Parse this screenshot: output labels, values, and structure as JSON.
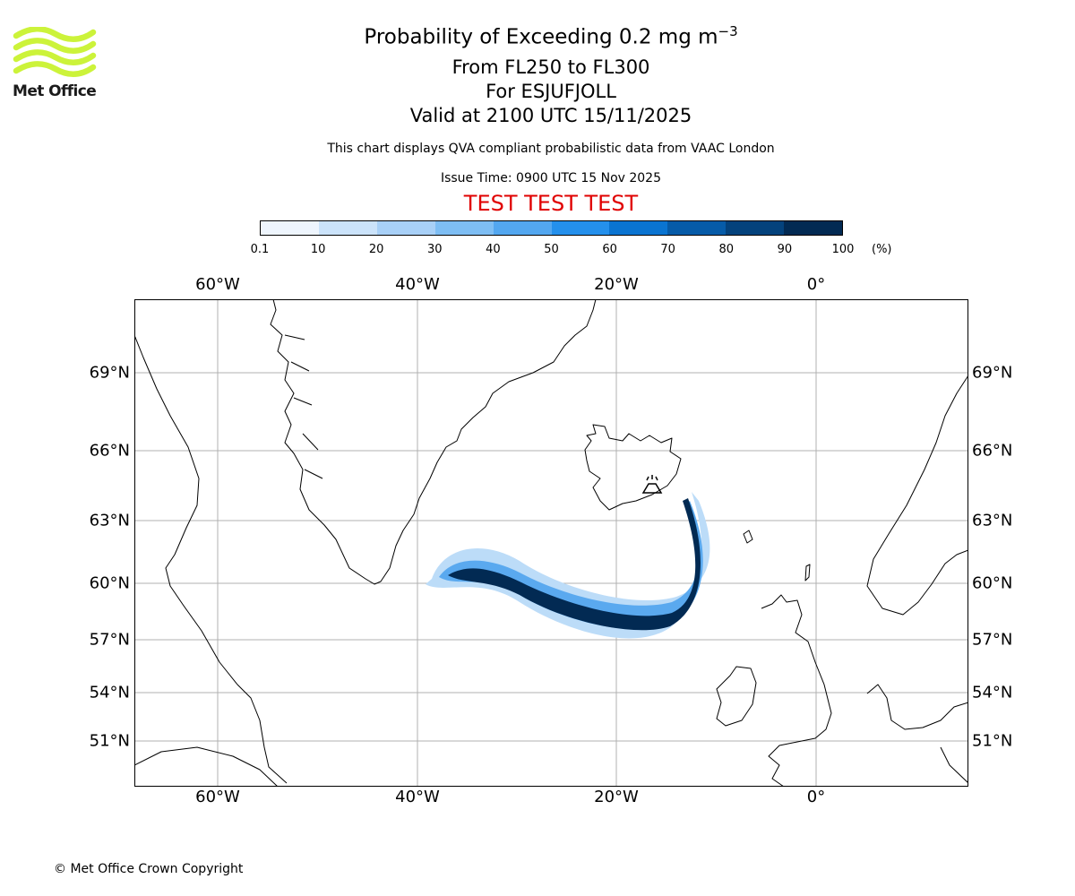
{
  "header": {
    "title_main": "Probability of Exceeding 0.2 mg m",
    "title_sup": "−3",
    "line2": "From FL250 to FL300",
    "line3": "For ESJUFJOLL",
    "line4": "Valid at 2100 UTC 15/11/2025",
    "subtitle": "This chart displays QVA compliant probabilistic data from VAAC London",
    "issue_time": "Issue Time: 0900 UTC 15 Nov 2025",
    "test_banner": "TEST TEST TEST",
    "test_color": "#e00000"
  },
  "logo": {
    "text": "Met Office",
    "color": "#ccf33a"
  },
  "colorbar": {
    "ticks": [
      "0.1",
      "10",
      "20",
      "30",
      "40",
      "50",
      "60",
      "70",
      "80",
      "90",
      "100"
    ],
    "unit": "(%)",
    "colors": [
      "#eef5fd",
      "#cbe3fa",
      "#a8d0f7",
      "#7ebef4",
      "#53a7f0",
      "#2490ec",
      "#0a74d1",
      "#065ba8",
      "#04427c",
      "#022a53"
    ]
  },
  "map": {
    "lon_labels": [
      "60°W",
      "40°W",
      "20°W",
      "0°"
    ],
    "lat_labels": [
      "69°N",
      "66°N",
      "63°N",
      "60°N",
      "57°N",
      "54°N",
      "51°N"
    ],
    "volcano": "ESJUFJOLL",
    "volcano_lat": 64.27,
    "volcano_lon": -16.65,
    "plume_max_probability_percent": 100
  },
  "footer": {
    "copyright": "© Met Office Crown Copyright"
  }
}
